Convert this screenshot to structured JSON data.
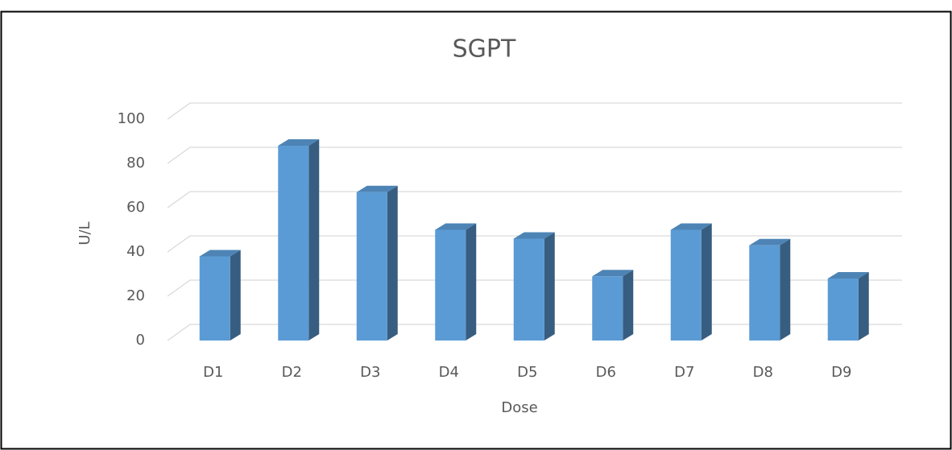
{
  "chart_data": {
    "type": "bar3d",
    "title": "SGPT",
    "x_label": "Dose",
    "y_label": "U/L",
    "categories": [
      "D1",
      "D2",
      "D3",
      "D4",
      "D5",
      "D6",
      "D7",
      "D8",
      "D9"
    ],
    "values": [
      38,
      88,
      67,
      50,
      46,
      29,
      50,
      43,
      28
    ],
    "color": "#5b9bd5",
    "ylim": [
      0,
      100
    ],
    "yticks": [
      0,
      20,
      40,
      60,
      80,
      100
    ],
    "grid": true
  }
}
